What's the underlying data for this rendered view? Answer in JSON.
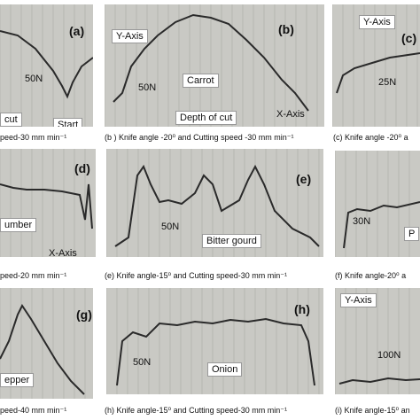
{
  "panels": [
    {
      "labels": [
        "(a)",
        "50N",
        "cut",
        "Start"
      ],
      "caption": "peed-30 mm min⁻¹"
    },
    {
      "labels": [
        "Y-Axis",
        "(b)",
        "50N",
        "Carrot",
        "Depth of cut",
        "X-Axis"
      ],
      "caption": "(b )  Knife angle -20⁰ and Cutting speed -30 mm min⁻¹"
    },
    {
      "labels": [
        "Y-Axis",
        "(c)",
        "25N"
      ],
      "caption": "(c)  Knife angle -20⁰ a"
    },
    {
      "labels": [
        "(d)",
        "umber",
        "X-Axis"
      ],
      "caption": "peed-20 mm min⁻¹"
    },
    {
      "labels": [
        "(e)",
        "50N",
        "Bitter gourd"
      ],
      "caption": "(e)  Knife angle-15⁰ and  Cutting speed-30 mm min⁻¹"
    },
    {
      "labels": [
        "30N",
        "P"
      ],
      "caption": "(f)  Knife angle-20⁰ a"
    },
    {
      "labels": [
        "(g)",
        "epper"
      ],
      "caption": "peed-40 mm min⁻¹"
    },
    {
      "labels": [
        "(h)",
        "50N",
        "Onion"
      ],
      "caption": "(h)  Knife angle-15⁰ and  Cutting speed-30 mm min⁻¹"
    },
    {
      "labels": [
        "Y-Axis",
        "100N"
      ],
      "caption": "(i)  Knife angle-15⁰ an"
    }
  ]
}
